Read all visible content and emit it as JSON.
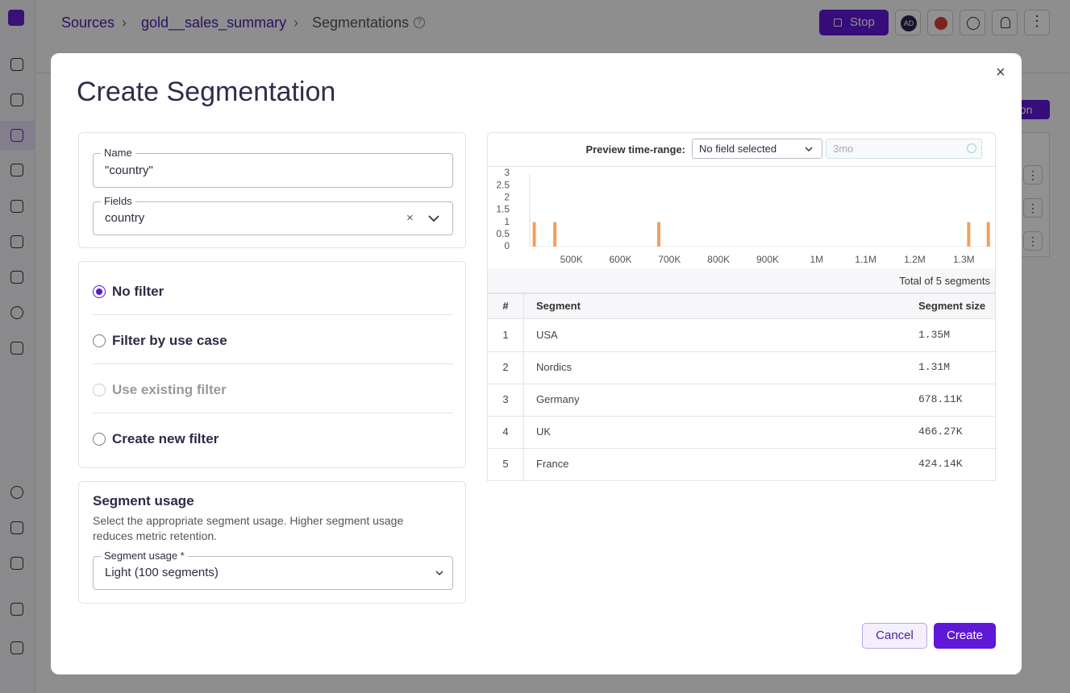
{
  "header": {
    "breadcrumbs": [
      "Sources",
      "gold__sales_summary",
      "Segmentations"
    ],
    "stop_button": "Stop",
    "avatar": "AD"
  },
  "background": {
    "button": "ation"
  },
  "modal": {
    "title": "Create Segmentation",
    "name": {
      "label": "Name",
      "value": "\"country\""
    },
    "fields": {
      "label": "Fields",
      "value": "country"
    },
    "filter": {
      "options": [
        "No filter",
        "Filter by use case",
        "Use existing filter",
        "Create new filter"
      ],
      "selected_option": 0,
      "disabled_option": 2
    },
    "segment_usage": {
      "title": "Segment usage",
      "description": "Select the appropriate segment usage. Higher segment usage reduces metric retention.",
      "label": "Segment usage *",
      "value": "Light (100 segments)"
    },
    "preview": {
      "label": "Preview time-range:",
      "select": "No field selected",
      "input_placeholder": "3mo",
      "total": "Total of 5 segments"
    },
    "table": {
      "headers": [
        "#",
        "Segment",
        "Segment size"
      ],
      "rows": [
        [
          "1",
          "USA",
          "1.35M"
        ],
        [
          "2",
          "Nordics",
          "1.31M"
        ],
        [
          "3",
          "Germany",
          "678.11K"
        ],
        [
          "4",
          "UK",
          "466.27K"
        ],
        [
          "5",
          "France",
          "424.14K"
        ]
      ]
    },
    "buttons": {
      "cancel": "Cancel",
      "create": "Create"
    }
  },
  "chart_data": {
    "type": "bar",
    "x": [
      424140,
      466270,
      678110,
      1310000,
      1350000
    ],
    "values": [
      1,
      1,
      1,
      1,
      1
    ],
    "color": "#f0a05e",
    "xlim": [
      415000,
      1362000
    ],
    "ylim": [
      0,
      3
    ],
    "xticks": [
      {
        "value": 500000,
        "label": "500K"
      },
      {
        "value": 600000,
        "label": "600K"
      },
      {
        "value": 700000,
        "label": "700K"
      },
      {
        "value": 800000,
        "label": "800K"
      },
      {
        "value": 900000,
        "label": "900K"
      },
      {
        "value": 1000000,
        "label": "1M"
      },
      {
        "value": 1100000,
        "label": "1.1M"
      },
      {
        "value": 1200000,
        "label": "1.2M"
      },
      {
        "value": 1300000,
        "label": "1.3M"
      }
    ],
    "yticks": [
      0,
      0.5,
      1,
      1.5,
      2,
      2.5,
      3
    ]
  }
}
